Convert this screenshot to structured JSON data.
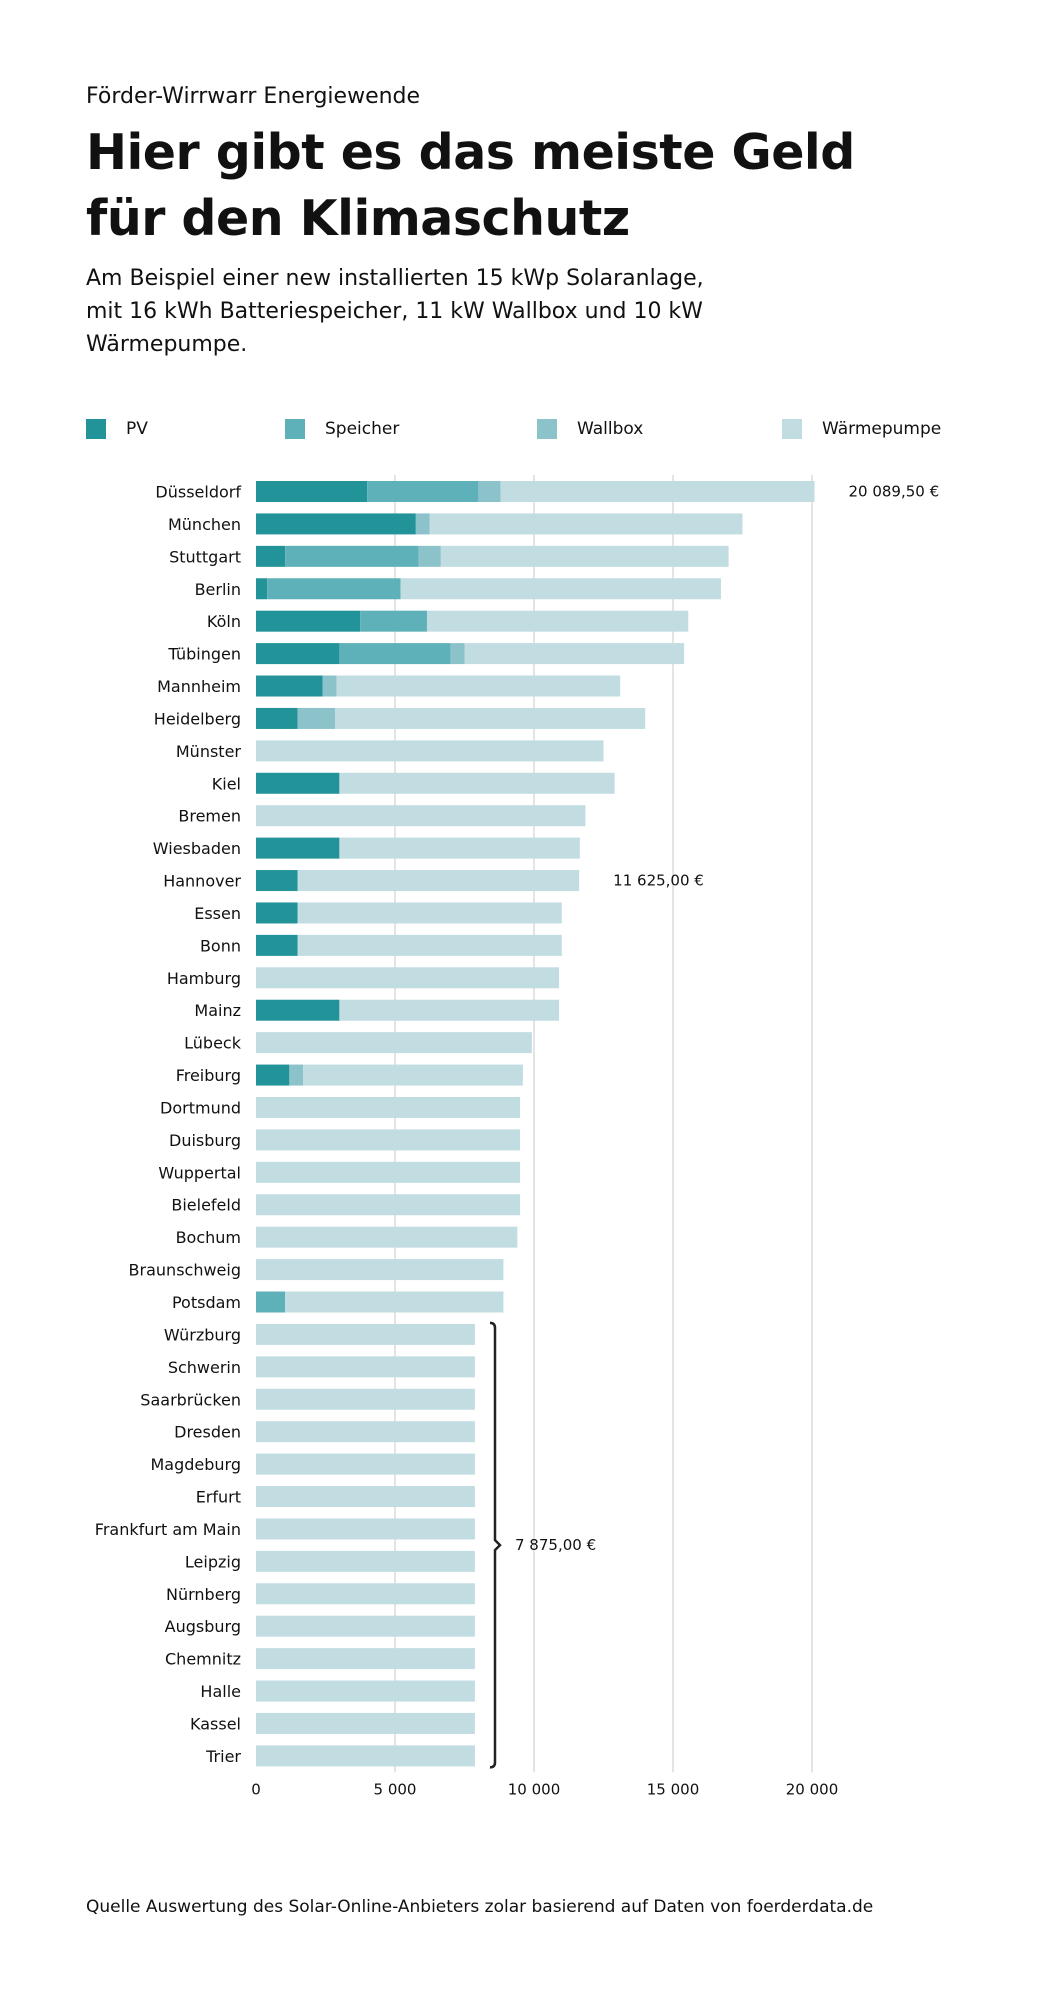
{
  "header": {
    "kicker": "Förder-Wirrwarr Energiewende",
    "title": "Hier gibt es das meiste Geld für den Klimaschutz",
    "subtitle": "Am Beispiel einer new installierten 15 kWp Solaranlage, mit 16 kWh Batteriespeicher, 11 kW Wallbox und 10 kW Wärmepumpe."
  },
  "footer": {
    "source": "Quelle Auswertung des Solar-Online-Anbieters zolar basierend auf Daten von foerderdata.de"
  },
  "chart_data": {
    "type": "bar",
    "orientation": "horizontal",
    "stacked": true,
    "categories": [
      "Düsseldorf",
      "München",
      "Stuttgart",
      "Berlin",
      "Köln",
      "Tübingen",
      "Mannheim",
      "Heidelberg",
      "Münster",
      "Kiel",
      "Bremen",
      "Wiesbaden",
      "Hannover",
      "Essen",
      "Bonn",
      "Hamburg",
      "Mainz",
      "Lübeck",
      "Freiburg",
      "Dortmund",
      "Duisburg",
      "Wuppertal",
      "Bielefeld",
      "Bochum",
      "Braunschweig",
      "Potsdam",
      "Würzburg",
      "Schwerin",
      "Saarbrücken",
      "Dresden",
      "Magdeburg",
      "Erfurt",
      "Frankfurt am Main",
      "Leipzig",
      "Nürnberg",
      "Augsburg",
      "Chemnitz",
      "Halle",
      "Kassel",
      "Trier"
    ],
    "series": [
      {
        "name": "PV",
        "color": "#23939a",
        "values": [
          4000,
          5750,
          1050,
          400,
          3750,
          3000,
          2400,
          1500,
          0,
          3000,
          0,
          3000,
          1500,
          1500,
          1500,
          0,
          3000,
          0,
          1200,
          0,
          0,
          0,
          0,
          0,
          0,
          0,
          0,
          0,
          0,
          0,
          0,
          0,
          0,
          0,
          0,
          0,
          0,
          0,
          0,
          0
        ]
      },
      {
        "name": "Speicher",
        "color": "#5eb1b8",
        "values": [
          4000,
          0,
          4800,
          4800,
          2400,
          4000,
          0,
          0,
          0,
          0,
          0,
          0,
          0,
          0,
          0,
          0,
          0,
          0,
          0,
          0,
          0,
          0,
          0,
          0,
          0,
          1050,
          0,
          0,
          0,
          0,
          0,
          0,
          0,
          0,
          0,
          0,
          0,
          0,
          0,
          0
        ]
      },
      {
        "name": "Wallbox",
        "color": "#8cc3cb",
        "values": [
          800,
          500,
          800,
          0,
          0,
          500,
          500,
          1350,
          0,
          0,
          0,
          0,
          0,
          0,
          0,
          0,
          0,
          0,
          500,
          0,
          0,
          0,
          0,
          0,
          0,
          0,
          0,
          0,
          0,
          0,
          0,
          0,
          0,
          0,
          0,
          0,
          0,
          0,
          0,
          0
        ]
      },
      {
        "name": "Wärmepumpe",
        "color": "#c1dde2",
        "values": [
          11289.5,
          11250,
          10350,
          11525,
          9400,
          7900,
          10200,
          11150,
          12500,
          9900,
          11850,
          8650,
          10125,
          9500,
          9500,
          10900,
          7900,
          9925,
          7900,
          9500,
          9500,
          9500,
          9500,
          9400,
          8900,
          7850,
          7875,
          7875,
          7875,
          7875,
          7875,
          7875,
          7875,
          7875,
          7875,
          7875,
          7875,
          7875,
          7875,
          7875
        ]
      }
    ],
    "xlim": [
      0,
      20000
    ],
    "xticks": [
      "0",
      "5 000",
      "10 000",
      "15 000",
      "20 000"
    ],
    "grid": true,
    "legend": "top",
    "annotations": [
      {
        "text": "20 089,50 €",
        "category": "Düsseldorf",
        "value": 20089.5
      },
      {
        "text": "11 625,00 €",
        "category": "Hannover",
        "value": 11625
      },
      {
        "text": "7 875,00 €",
        "bracket_from": "Würzburg",
        "bracket_to": "Trier",
        "value": 7875
      }
    ]
  }
}
